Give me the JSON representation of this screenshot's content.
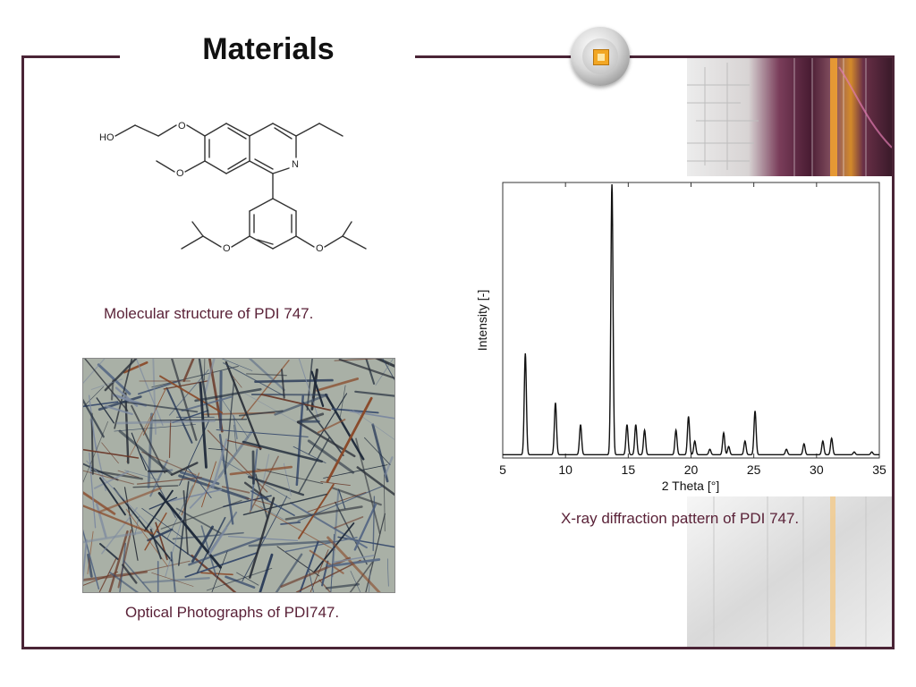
{
  "slide": {
    "title": "Materials"
  },
  "molecule": {
    "atom_labels": {
      "ho": "HO",
      "o1": "O",
      "o2": "O",
      "n": "N",
      "o3": "O",
      "o4": "O"
    },
    "caption": "Molecular structure of PDI 747."
  },
  "photo": {
    "caption": "Optical Photographs of PDI747."
  },
  "colors": {
    "frame": "#4a2436",
    "caption": "#5a2238",
    "accent": "#f2a724"
  },
  "chart_data": {
    "type": "line",
    "xlabel": "2 Theta [°]",
    "ylabel": "Intensity [-]",
    "xlim": [
      5,
      35
    ],
    "xticks": [
      "5",
      "10",
      "15",
      "20",
      "25",
      "30",
      "35"
    ],
    "ylim": [
      0,
      1
    ],
    "grid": false,
    "series": [
      {
        "peaks": [
          {
            "x": 6.8,
            "y": 0.37
          },
          {
            "x": 9.2,
            "y": 0.19
          },
          {
            "x": 11.2,
            "y": 0.11
          },
          {
            "x": 13.7,
            "y": 1.0
          },
          {
            "x": 14.9,
            "y": 0.11
          },
          {
            "x": 15.6,
            "y": 0.11
          },
          {
            "x": 16.3,
            "y": 0.09
          },
          {
            "x": 18.8,
            "y": 0.09
          },
          {
            "x": 19.8,
            "y": 0.14
          },
          {
            "x": 20.3,
            "y": 0.05
          },
          {
            "x": 21.5,
            "y": 0.02
          },
          {
            "x": 22.6,
            "y": 0.08
          },
          {
            "x": 23.0,
            "y": 0.03
          },
          {
            "x": 24.3,
            "y": 0.05
          },
          {
            "x": 25.1,
            "y": 0.16
          },
          {
            "x": 27.6,
            "y": 0.02
          },
          {
            "x": 29.0,
            "y": 0.04
          },
          {
            "x": 30.5,
            "y": 0.05
          },
          {
            "x": 31.2,
            "y": 0.06
          },
          {
            "x": 33.0,
            "y": 0.01
          },
          {
            "x": 34.4,
            "y": 0.01
          }
        ]
      }
    ],
    "caption": "X-ray diffraction pattern of PDI 747."
  }
}
